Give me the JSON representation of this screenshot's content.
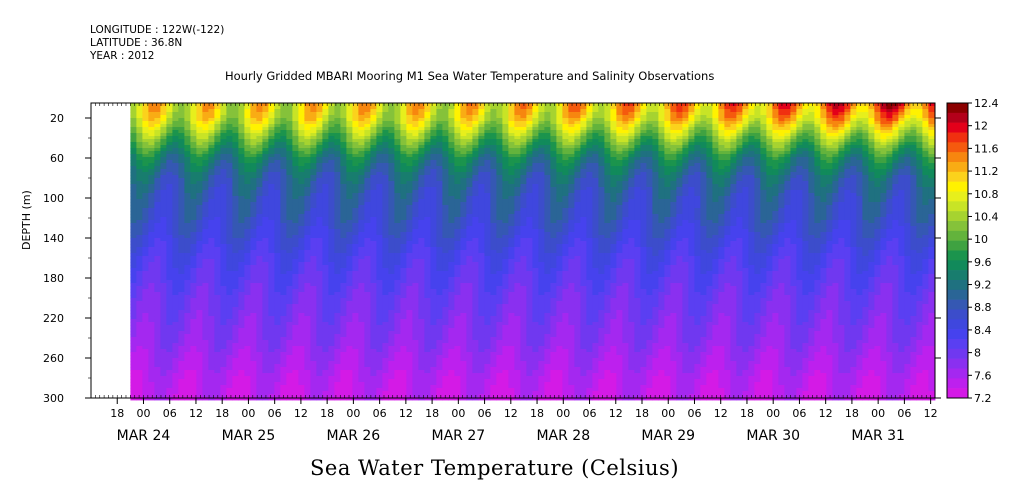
{
  "header": {
    "longitude": "LONGITUDE : 122W(-122)",
    "latitude": "LATITUDE : 36.8N",
    "year": "YEAR : 2012"
  },
  "chart_data": {
    "type": "heatmap",
    "title": "Hourly Gridded MBARI Mooring M1 Sea Water Temperature and Salinity Observations",
    "xlabel": "Sea Water Temperature (Celsius)",
    "ylabel": "DEPTH (m)",
    "units": "Celsius",
    "x_range_hours": [
      -12,
      181
    ],
    "x_hour_ticks": [
      "18",
      "00",
      "06",
      "12",
      "18",
      "00",
      "06",
      "12",
      "18",
      "00",
      "06",
      "12",
      "18",
      "00",
      "06",
      "12",
      "18",
      "00",
      "06",
      "12",
      "18",
      "00",
      "06",
      "12",
      "18",
      "00",
      "06",
      "12",
      "18",
      "00",
      "06",
      "12"
    ],
    "x_day_labels": [
      "MAR 24",
      "MAR 25",
      "MAR 26",
      "MAR 27",
      "MAR 28",
      "MAR 29",
      "MAR 30",
      "MAR 31"
    ],
    "y_range": [
      300,
      5
    ],
    "y_ticks": [
      "20",
      "60",
      "100",
      "140",
      "180",
      "220",
      "260",
      "300"
    ],
    "data_start_hour": -3,
    "colorbar": {
      "levels": [
        "12.4",
        "12",
        "11.6",
        "11.2",
        "10.8",
        "10.4",
        "10",
        "9.6",
        "9.2",
        "8.8",
        "8.4",
        "8",
        "7.6",
        "7.2"
      ],
      "colors": [
        "#8b0000",
        "#b3001a",
        "#e3001a",
        "#f03010",
        "#f55a0e",
        "#f7860f",
        "#f9ac14",
        "#fbd21c",
        "#fff200",
        "#e7ef1c",
        "#c8e426",
        "#a6d330",
        "#85c23a",
        "#63b33c",
        "#3fa241",
        "#1b944d",
        "#118a5b",
        "#187d6e",
        "#1f7180",
        "#2a6596",
        "#3558b3",
        "#3c4dcb",
        "#3f47de",
        "#4642ee",
        "#5a3ff2",
        "#7038f0",
        "#8a30f0",
        "#a428f0",
        "#bd20ee",
        "#d41ae6"
      ]
    },
    "depth_profile": [
      {
        "depth": 5,
        "temp": 11.0
      },
      {
        "depth": 20,
        "temp": 10.8
      },
      {
        "depth": 40,
        "temp": 10.1
      },
      {
        "depth": 60,
        "temp": 9.4
      },
      {
        "depth": 80,
        "temp": 9.0
      },
      {
        "depth": 100,
        "temp": 8.8
      },
      {
        "depth": 120,
        "temp": 8.7
      },
      {
        "depth": 140,
        "temp": 8.5
      },
      {
        "depth": 160,
        "temp": 8.3
      },
      {
        "depth": 180,
        "temp": 8.15
      },
      {
        "depth": 200,
        "temp": 8.0
      },
      {
        "depth": 220,
        "temp": 7.9
      },
      {
        "depth": 240,
        "temp": 7.8
      },
      {
        "depth": 260,
        "temp": 7.65
      },
      {
        "depth": 280,
        "temp": 7.5
      },
      {
        "depth": 300,
        "temp": 7.4
      }
    ],
    "surface_trend": [
      {
        "hour": -3,
        "temp": 10.9
      },
      {
        "hour": 24,
        "temp": 10.8
      },
      {
        "hour": 48,
        "temp": 10.9
      },
      {
        "hour": 72,
        "temp": 10.9
      },
      {
        "hour": 96,
        "temp": 11.1
      },
      {
        "hour": 120,
        "temp": 11.3
      },
      {
        "hour": 144,
        "temp": 11.5
      },
      {
        "hour": 168,
        "temp": 11.9
      },
      {
        "hour": 181,
        "temp": 12.0
      }
    ]
  }
}
